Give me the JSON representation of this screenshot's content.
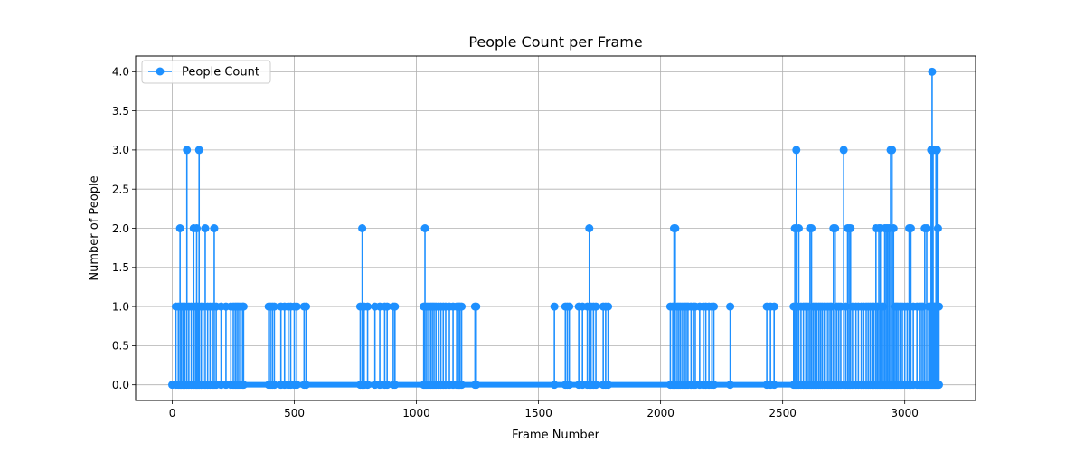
{
  "chart_data": {
    "type": "line",
    "title": "People Count per Frame",
    "xlabel": "Frame Number",
    "ylabel": "Number of People",
    "xlim": [
      -150,
      3290
    ],
    "ylim": [
      -0.2,
      4.2
    ],
    "xticks": [
      0,
      500,
      1000,
      1500,
      2000,
      2500,
      3000
    ],
    "yticks": [
      0.0,
      0.5,
      1.0,
      1.5,
      2.0,
      2.5,
      3.0,
      3.5,
      4.0
    ],
    "xtick_labels": [
      "0",
      "500",
      "1000",
      "1500",
      "2000",
      "2500",
      "3000"
    ],
    "ytick_labels": [
      "0.0",
      "0.5",
      "1.0",
      "1.5",
      "2.0",
      "2.5",
      "3.0",
      "3.5",
      "4.0"
    ],
    "grid": true,
    "legend_position": "top-left",
    "line_color": "#1e90ff",
    "series": [
      {
        "name": "People Count",
        "spikes": [
          [
            15,
            1
          ],
          [
            25,
            1
          ],
          [
            32,
            2
          ],
          [
            38,
            1
          ],
          [
            45,
            1
          ],
          [
            52,
            1
          ],
          [
            60,
            3
          ],
          [
            68,
            1
          ],
          [
            78,
            1
          ],
          [
            88,
            2
          ],
          [
            95,
            1
          ],
          [
            100,
            2
          ],
          [
            105,
            1
          ],
          [
            110,
            3
          ],
          [
            118,
            1
          ],
          [
            126,
            1
          ],
          [
            135,
            2
          ],
          [
            145,
            1
          ],
          [
            155,
            1
          ],
          [
            165,
            1
          ],
          [
            172,
            2
          ],
          [
            180,
            1
          ],
          [
            200,
            1
          ],
          [
            220,
            1
          ],
          [
            240,
            1
          ],
          [
            250,
            1
          ],
          [
            258,
            1
          ],
          [
            265,
            1
          ],
          [
            272,
            1
          ],
          [
            280,
            1
          ],
          [
            288,
            1
          ],
          [
            292,
            1
          ],
          [
            395,
            1
          ],
          [
            402,
            1
          ],
          [
            410,
            1
          ],
          [
            418,
            1
          ],
          [
            445,
            1
          ],
          [
            460,
            1
          ],
          [
            475,
            1
          ],
          [
            485,
            1
          ],
          [
            500,
            1
          ],
          [
            510,
            1
          ],
          [
            540,
            1
          ],
          [
            548,
            1
          ],
          [
            770,
            1
          ],
          [
            778,
            2
          ],
          [
            786,
            1
          ],
          [
            800,
            1
          ],
          [
            830,
            1
          ],
          [
            850,
            1
          ],
          [
            870,
            1
          ],
          [
            880,
            1
          ],
          [
            905,
            1
          ],
          [
            912,
            1
          ],
          [
            1030,
            1
          ],
          [
            1035,
            2
          ],
          [
            1042,
            1
          ],
          [
            1050,
            1
          ],
          [
            1058,
            1
          ],
          [
            1065,
            1
          ],
          [
            1072,
            1
          ],
          [
            1080,
            1
          ],
          [
            1090,
            1
          ],
          [
            1100,
            1
          ],
          [
            1110,
            1
          ],
          [
            1120,
            1
          ],
          [
            1135,
            1
          ],
          [
            1150,
            1
          ],
          [
            1165,
            1
          ],
          [
            1172,
            1
          ],
          [
            1178,
            1
          ],
          [
            1185,
            1
          ],
          [
            1240,
            1
          ],
          [
            1245,
            1
          ],
          [
            1565,
            1
          ],
          [
            1610,
            1
          ],
          [
            1618,
            1
          ],
          [
            1626,
            1
          ],
          [
            1665,
            1
          ],
          [
            1680,
            1
          ],
          [
            1700,
            1
          ],
          [
            1708,
            2
          ],
          [
            1715,
            1
          ],
          [
            1725,
            1
          ],
          [
            1735,
            1
          ],
          [
            1765,
            1
          ],
          [
            1775,
            1
          ],
          [
            1785,
            1
          ],
          [
            2040,
            1
          ],
          [
            2050,
            1
          ],
          [
            2055,
            2
          ],
          [
            2060,
            2
          ],
          [
            2068,
            1
          ],
          [
            2075,
            1
          ],
          [
            2082,
            1
          ],
          [
            2090,
            1
          ],
          [
            2098,
            1
          ],
          [
            2105,
            1
          ],
          [
            2112,
            1
          ],
          [
            2125,
            1
          ],
          [
            2135,
            1
          ],
          [
            2142,
            1
          ],
          [
            2160,
            1
          ],
          [
            2175,
            1
          ],
          [
            2185,
            1
          ],
          [
            2198,
            1
          ],
          [
            2210,
            1
          ],
          [
            2218,
            1
          ],
          [
            2285,
            1
          ],
          [
            2435,
            1
          ],
          [
            2450,
            1
          ],
          [
            2465,
            1
          ],
          [
            2545,
            1
          ],
          [
            2550,
            2
          ],
          [
            2556,
            3
          ],
          [
            2560,
            1
          ],
          [
            2566,
            2
          ],
          [
            2575,
            1
          ],
          [
            2585,
            1
          ],
          [
            2595,
            1
          ],
          [
            2605,
            1
          ],
          [
            2612,
            2
          ],
          [
            2618,
            2
          ],
          [
            2625,
            1
          ],
          [
            2632,
            1
          ],
          [
            2640,
            1
          ],
          [
            2648,
            1
          ],
          [
            2655,
            1
          ],
          [
            2662,
            1
          ],
          [
            2670,
            1
          ],
          [
            2678,
            1
          ],
          [
            2686,
            1
          ],
          [
            2694,
            1
          ],
          [
            2700,
            1
          ],
          [
            2708,
            2
          ],
          [
            2715,
            2
          ],
          [
            2722,
            1
          ],
          [
            2730,
            1
          ],
          [
            2738,
            1
          ],
          [
            2750,
            3
          ],
          [
            2758,
            1
          ],
          [
            2766,
            2
          ],
          [
            2772,
            2
          ],
          [
            2778,
            2
          ],
          [
            2786,
            1
          ],
          [
            2800,
            1
          ],
          [
            2810,
            1
          ],
          [
            2822,
            1
          ],
          [
            2832,
            1
          ],
          [
            2842,
            1
          ],
          [
            2850,
            1
          ],
          [
            2858,
            1
          ],
          [
            2866,
            1
          ],
          [
            2874,
            1
          ],
          [
            2882,
            2
          ],
          [
            2888,
            1
          ],
          [
            2894,
            2
          ],
          [
            2900,
            2
          ],
          [
            2906,
            1
          ],
          [
            2912,
            1
          ],
          [
            2918,
            2
          ],
          [
            2924,
            2
          ],
          [
            2930,
            2
          ],
          [
            2936,
            2
          ],
          [
            2942,
            3
          ],
          [
            2948,
            3
          ],
          [
            2954,
            2
          ],
          [
            2960,
            1
          ],
          [
            2966,
            1
          ],
          [
            2972,
            1
          ],
          [
            2980,
            1
          ],
          [
            2990,
            1
          ],
          [
            3000,
            1
          ],
          [
            3010,
            1
          ],
          [
            3018,
            2
          ],
          [
            3025,
            2
          ],
          [
            3035,
            1
          ],
          [
            3050,
            1
          ],
          [
            3060,
            1
          ],
          [
            3068,
            1
          ],
          [
            3075,
            1
          ],
          [
            3082,
            2
          ],
          [
            3090,
            2
          ],
          [
            3098,
            1
          ],
          [
            3104,
            1
          ],
          [
            3108,
            3
          ],
          [
            3112,
            4
          ],
          [
            3116,
            3
          ],
          [
            3120,
            1
          ],
          [
            3124,
            1
          ],
          [
            3128,
            3
          ],
          [
            3132,
            3
          ],
          [
            3136,
            2
          ],
          [
            3140,
            1
          ]
        ]
      }
    ],
    "x_range": [
      0,
      3140
    ]
  }
}
